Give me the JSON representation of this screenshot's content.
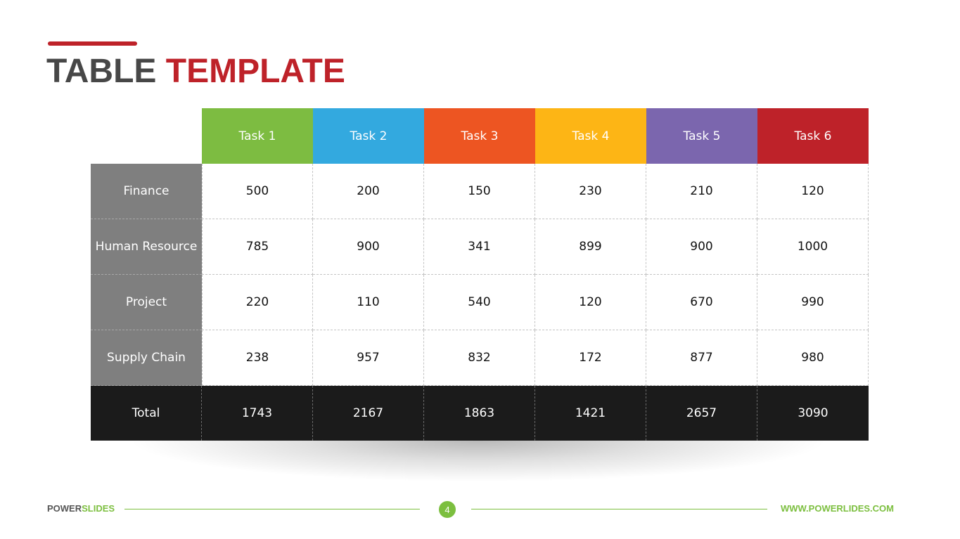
{
  "title": {
    "part1": "TABLE",
    "part2": "TEMPLATE"
  },
  "colors": {
    "accent": "#be2229",
    "task_colors": [
      "#7dbc41",
      "#33a9df",
      "#ed5522",
      "#fdb515",
      "#7b66ae",
      "#be2229"
    ],
    "row_label_bg": "#7f7f7f",
    "total_bg": "#1b1b1b",
    "brand_green": "#7cbf3f"
  },
  "table": {
    "headers": [
      "Task 1",
      "Task 2",
      "Task 3",
      "Task 4",
      "Task 5",
      "Task 6"
    ],
    "rows": [
      {
        "label": "Finance",
        "values": [
          "500",
          "200",
          "150",
          "230",
          "210",
          "120"
        ]
      },
      {
        "label": "Human Resource",
        "values": [
          "785",
          "900",
          "341",
          "899",
          "900",
          "1000"
        ]
      },
      {
        "label": "Project",
        "values": [
          "220",
          "110",
          "540",
          "120",
          "670",
          "990"
        ]
      },
      {
        "label": "Supply Chain",
        "values": [
          "238",
          "957",
          "832",
          "172",
          "877",
          "980"
        ]
      }
    ],
    "total": {
      "label": "Total",
      "values": [
        "1743",
        "2167",
        "1863",
        "1421",
        "2657",
        "3090"
      ]
    }
  },
  "footer": {
    "brand_part1": "POWER",
    "brand_part2": "SLIDES",
    "page_number": "4",
    "url": "WWW.POWERLIDES.COM"
  }
}
